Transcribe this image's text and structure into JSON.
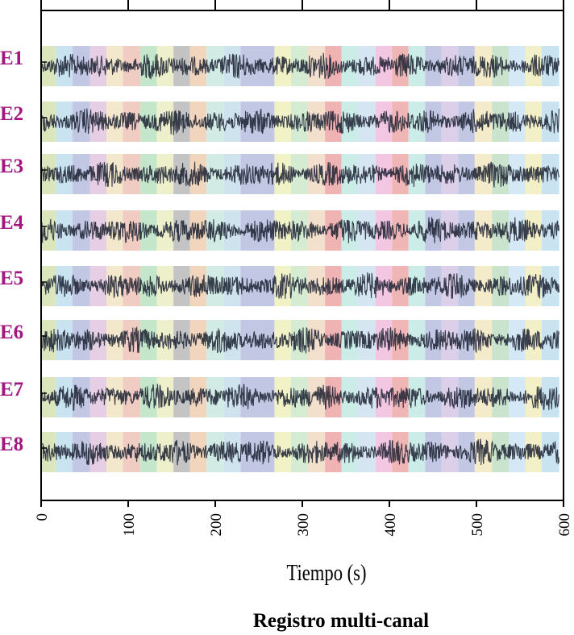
{
  "chart_data": {
    "type": "line",
    "title": "",
    "caption": "Registro multi-canal",
    "xlabel": "Tiempo (s)",
    "ylabel": "",
    "xlim": [
      0,
      600
    ],
    "x_ticks": [
      0,
      100,
      200,
      300,
      400,
      500,
      600
    ],
    "grid": false,
    "channels": [
      "E1",
      "E2",
      "E3",
      "E4",
      "E5",
      "E6",
      "E7",
      "E8"
    ],
    "channel_label_color": "#a5157f",
    "trace_color": "#1a2030",
    "segments": [
      {
        "start": 0,
        "end": 17,
        "color": "#dbe6bd"
      },
      {
        "start": 17,
        "end": 36,
        "color": "#c9e3f1"
      },
      {
        "start": 36,
        "end": 56,
        "color": "#c2c8e3"
      },
      {
        "start": 56,
        "end": 75,
        "color": "#e6cfe4"
      },
      {
        "start": 75,
        "end": 94,
        "color": "#f4e8cc"
      },
      {
        "start": 94,
        "end": 114,
        "color": "#f0ccc2"
      },
      {
        "start": 114,
        "end": 133,
        "color": "#c4e6cb"
      },
      {
        "start": 133,
        "end": 152,
        "color": "#eef0cc"
      },
      {
        "start": 152,
        "end": 171,
        "color": "#c4c4c4"
      },
      {
        "start": 171,
        "end": 190,
        "color": "#f2d5bd"
      },
      {
        "start": 190,
        "end": 210,
        "color": "#d2ebe4"
      },
      {
        "start": 210,
        "end": 229,
        "color": "#cfe3ef"
      },
      {
        "start": 229,
        "end": 268,
        "color": "#c2c8e3"
      },
      {
        "start": 268,
        "end": 287,
        "color": "#f2f2c7"
      },
      {
        "start": 287,
        "end": 306,
        "color": "#d5ecd2"
      },
      {
        "start": 306,
        "end": 326,
        "color": "#f3e0cc"
      },
      {
        "start": 326,
        "end": 345,
        "color": "#f0b3b3"
      },
      {
        "start": 345,
        "end": 364,
        "color": "#ccece7"
      },
      {
        "start": 364,
        "end": 384,
        "color": "#d5e5f2"
      },
      {
        "start": 384,
        "end": 403,
        "color": "#f3c6e2"
      },
      {
        "start": 403,
        "end": 422,
        "color": "#f0b5b5"
      },
      {
        "start": 422,
        "end": 441,
        "color": "#ccece7"
      },
      {
        "start": 441,
        "end": 460,
        "color": "#c2c8e3"
      },
      {
        "start": 460,
        "end": 479,
        "color": "#dccfe9"
      },
      {
        "start": 479,
        "end": 498,
        "color": "#c2c8e3"
      },
      {
        "start": 498,
        "end": 518,
        "color": "#f3ebca"
      },
      {
        "start": 518,
        "end": 537,
        "color": "#c9e3cd"
      },
      {
        "start": 537,
        "end": 556,
        "color": "#d5e8f5"
      },
      {
        "start": 556,
        "end": 575,
        "color": "#f3f0c8"
      },
      {
        "start": 575,
        "end": 595,
        "color": "#c9e3f1"
      }
    ]
  }
}
